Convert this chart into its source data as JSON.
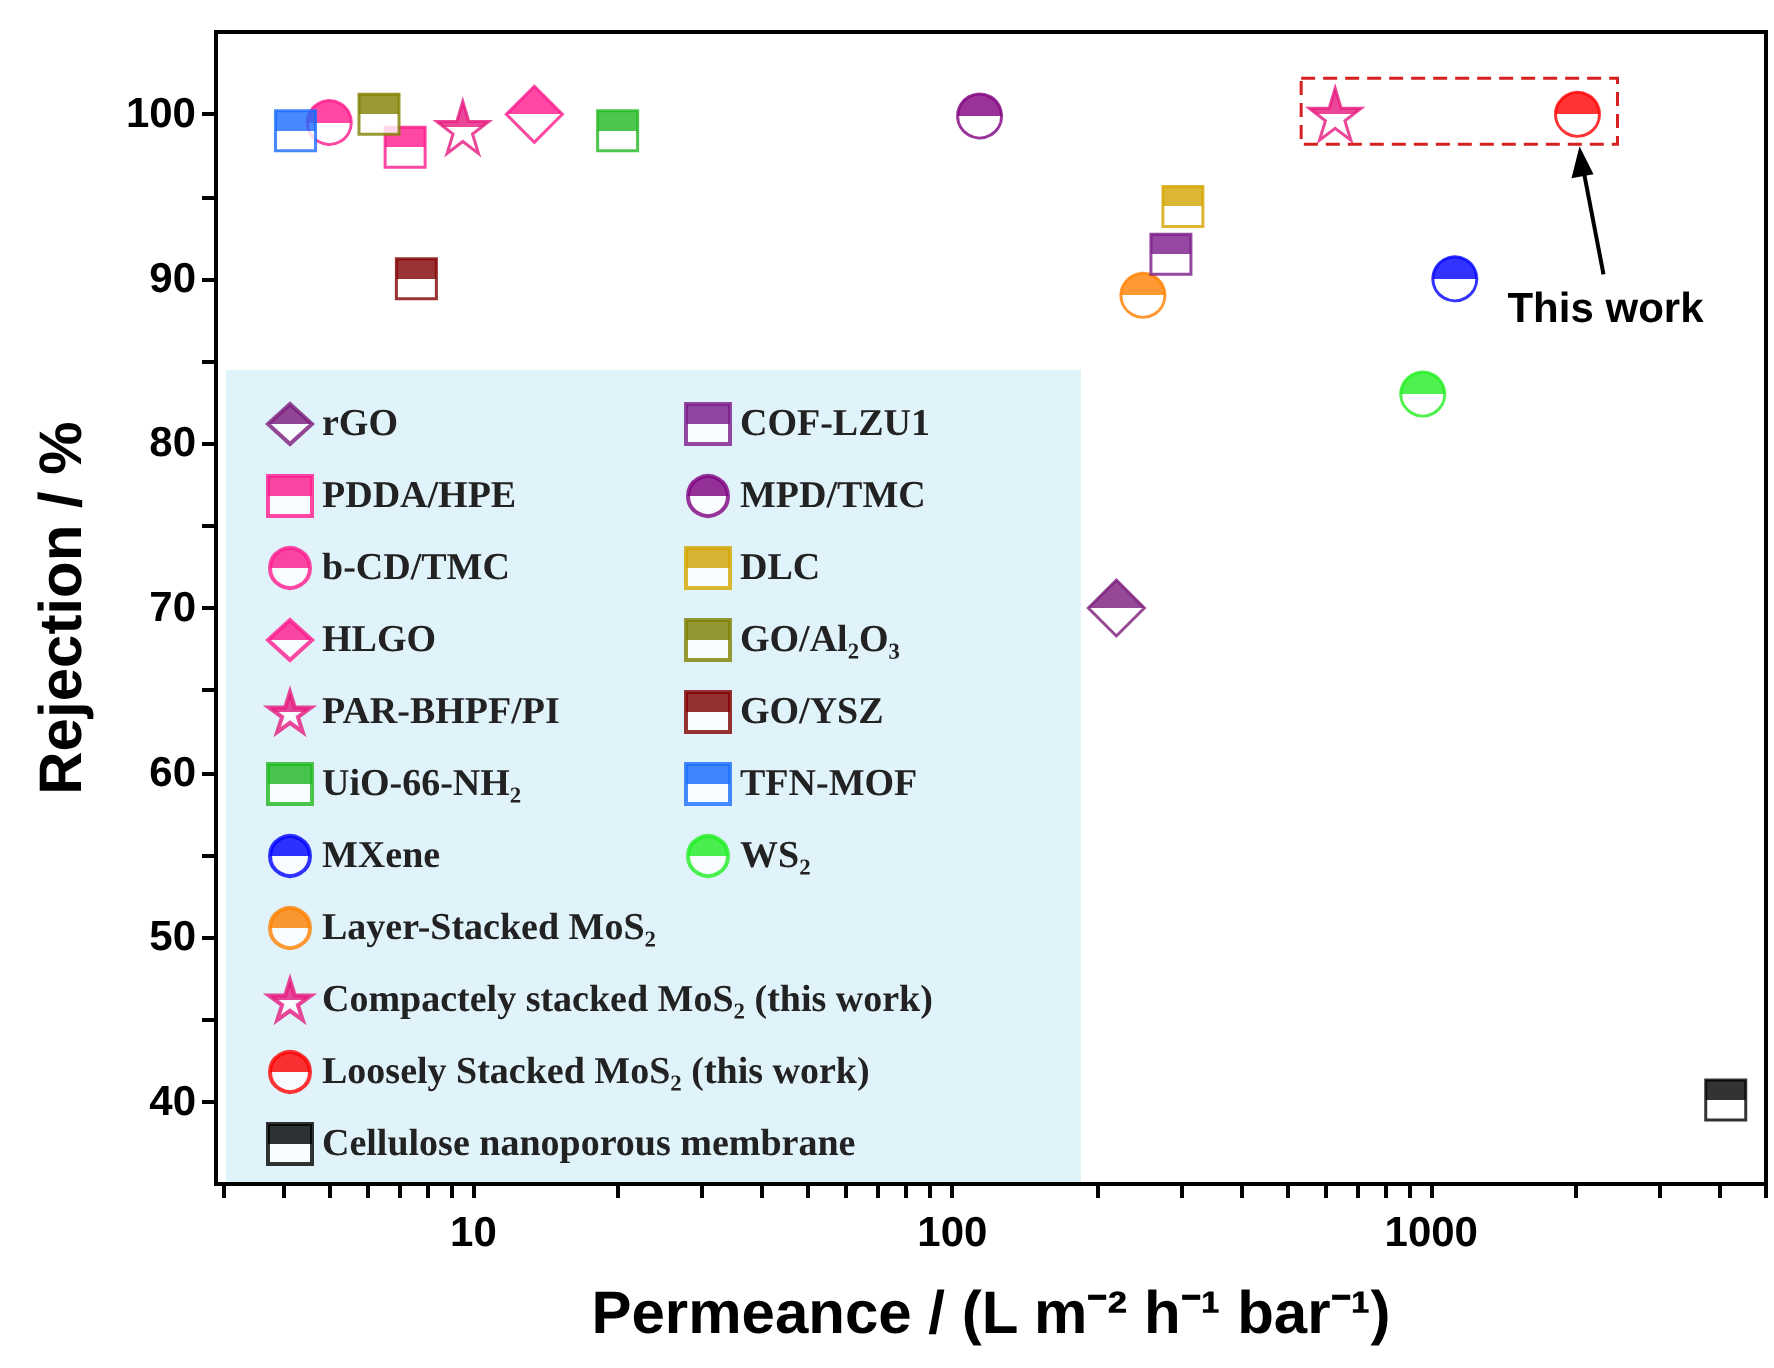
{
  "chart_data": {
    "type": "scatter",
    "xlabel": "Permeance / (L m⁻² h⁻¹ bar⁻¹)",
    "ylabel": "Rejection / %",
    "log": "x",
    "grid": false,
    "legend": "bottom left",
    "xlim": [
      2.9,
      5000
    ],
    "ylim": [
      35,
      105
    ],
    "xticks": [
      {
        "value": 3,
        "label": null
      },
      {
        "value": 4,
        "label": null
      },
      {
        "value": 5,
        "label": null
      },
      {
        "value": 6,
        "label": null
      },
      {
        "value": 7,
        "label": null
      },
      {
        "value": 8,
        "label": null
      },
      {
        "value": 9,
        "label": null
      },
      10,
      {
        "value": 20,
        "label": null
      },
      {
        "value": 30,
        "label": null
      },
      {
        "value": 40,
        "label": null
      },
      {
        "value": 50,
        "label": null
      },
      {
        "value": 60,
        "label": null
      },
      {
        "value": 70,
        "label": null
      },
      {
        "value": 80,
        "label": null
      },
      {
        "value": 90,
        "label": null
      },
      100,
      {
        "value": 200,
        "label": null
      },
      {
        "value": 300,
        "label": null
      },
      {
        "value": 400,
        "label": null
      },
      {
        "value": 500,
        "label": null
      },
      {
        "value": 600,
        "label": null
      },
      {
        "value": 700,
        "label": null
      },
      {
        "value": 800,
        "label": null
      },
      {
        "value": 900,
        "label": null
      },
      1000,
      {
        "value": 2000,
        "label": null
      },
      {
        "value": 3000,
        "label": null
      },
      {
        "value": 4000,
        "label": null
      },
      {
        "value": 5000,
        "label": null
      }
    ],
    "yticks": [
      40,
      {
        "value": 45,
        "label": null
      },
      50,
      {
        "value": 55,
        "label": null
      },
      60,
      {
        "value": 65,
        "label": null
      },
      70,
      {
        "value": 75,
        "label": null
      },
      80,
      {
        "value": 85,
        "label": null
      },
      90,
      {
        "value": 95,
        "label": null
      },
      100
    ],
    "annotations": [
      "This work"
    ],
    "series": [
      {
        "name": "rGO",
        "color": "#7b1a7b",
        "marker": "diamond",
        "x": [
          220
        ],
        "values": [
          70
        ]
      },
      {
        "name": "PDDA/HPE",
        "color": "#ff1a8c",
        "marker": "square",
        "x": [
          7.2
        ],
        "values": [
          98
        ]
      },
      {
        "name": "b-CD/TMC",
        "color": "#ff1a8c",
        "marker": "circle",
        "x": [
          5
        ],
        "values": [
          99.5
        ]
      },
      {
        "name": "HLGO",
        "color": "#ff1a8c",
        "marker": "diamond",
        "x": [
          13.4
        ],
        "values": [
          100
        ]
      },
      {
        "name": "PAR-BHPF/PI",
        "color": "#e6197e",
        "marker": "star",
        "x": [
          9.5
        ],
        "values": [
          99.2
        ]
      },
      {
        "name": "UiO-66-NH₂",
        "color": "#22b822",
        "marker": "square",
        "x": [
          20
        ],
        "values": [
          99
        ]
      },
      {
        "name": "MXene",
        "color": "#0000ff",
        "marker": "circle",
        "x": [
          1120
        ],
        "values": [
          90
        ]
      },
      {
        "name": "Layer-Stacked MoS₂",
        "color": "#ff8000",
        "marker": "circle",
        "x": [
          250
        ],
        "values": [
          89
        ]
      },
      {
        "name": "Compactely stacked MoS₂ (this work)",
        "color": "#e6197e",
        "marker": "star",
        "x": [
          630
        ],
        "values": [
          100
        ]
      },
      {
        "name": "Loosely Stacked MoS₂ (this work)",
        "color": "#ff0000",
        "marker": "circle",
        "x": [
          2020
        ],
        "values": [
          100
        ]
      },
      {
        "name": "Cellulose nanoporous membrane",
        "color": "#000000",
        "marker": "square",
        "x": [
          4120
        ],
        "values": [
          40.1
        ]
      },
      {
        "name": "COF-LZU1",
        "color": "#7b1a8a",
        "marker": "square",
        "x": [
          286
        ],
        "values": [
          91.5
        ]
      },
      {
        "name": "MPD/TMC",
        "color": "#800080",
        "marker": "circle",
        "x": [
          114
        ],
        "values": [
          99.9
        ]
      },
      {
        "name": "DLC",
        "color": "#d4a500",
        "marker": "square",
        "x": [
          303
        ],
        "values": [
          94.4
        ]
      },
      {
        "name": "GO/Al₂O₃",
        "color": "#808000",
        "marker": "square",
        "x": [
          6.35
        ],
        "values": [
          100
        ]
      },
      {
        "name": "GO/YSZ",
        "color": "#800000",
        "marker": "square",
        "x": [
          7.6
        ],
        "values": [
          90
        ]
      },
      {
        "name": "TFN-MOF",
        "color": "#1a6bff",
        "marker": "square",
        "x": [
          4.25
        ],
        "values": [
          99
        ]
      },
      {
        "name": "WS₂",
        "color": "#22ee22",
        "marker": "circle",
        "x": [
          960
        ],
        "values": [
          83
        ]
      }
    ]
  }
}
